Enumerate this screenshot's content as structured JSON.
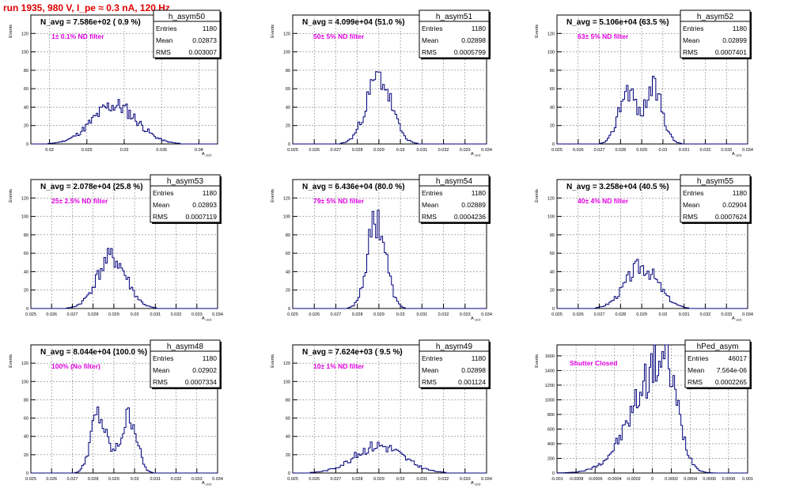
{
  "page_title": "run 1935,   980 V, I_pe ≈ 0.3 nA, 120 Hz",
  "stat_labels": {
    "entries": "Entries",
    "mean": "Mean",
    "rms": "RMS"
  },
  "colors": {
    "histogram": "#00007a",
    "annotation": "#e000e0",
    "title": "#e00000",
    "grid": "#808080"
  },
  "chart_data": [
    {
      "type": "bar",
      "name": "h_asym50",
      "title": "N_avg = 7.586e+02 ( 0.9 %)",
      "annotation": "1± 0.1% ND filter",
      "ylabel": "Events",
      "xlabel": "A",
      "xlim": [
        0.0175,
        0.0425
      ],
      "ylim": [
        0,
        140
      ],
      "xticks": [
        0.02,
        0.025,
        0.03,
        0.035,
        0.04
      ],
      "xtick_labels": [
        "0.02",
        "0.025",
        "0.03",
        "0.035",
        "0.04"
      ],
      "yticks": [
        0,
        20,
        40,
        60,
        80,
        100,
        120
      ],
      "ytick_labels": [
        "0",
        "20",
        "40",
        "60",
        "80",
        "100",
        "120"
      ],
      "stats": {
        "entries": "1180",
        "mean": "0.02873",
        "rms": "0.003007"
      },
      "shape": {
        "kind": "gauss",
        "mean": 0.0287,
        "sigma": 0.003,
        "peak": 42,
        "bins": 120,
        "seed": 11
      }
    },
    {
      "type": "bar",
      "name": "h_asym51",
      "title": "N_avg = 4.099e+04 (51.0 %)",
      "annotation": "50± 5% ND filter",
      "ylabel": "Events",
      "xlabel": "A",
      "xlim": [
        0.025,
        0.034
      ],
      "ylim": [
        0,
        140
      ],
      "xticks": [
        0.025,
        0.026,
        0.027,
        0.028,
        0.029,
        0.03,
        0.031,
        0.032,
        0.033,
        0.034
      ],
      "xtick_labels": [
        "0.025",
        "0.026",
        "0.027",
        "0.028",
        "0.029",
        "0.03",
        "0.031",
        "0.032",
        "0.033",
        "0.034"
      ],
      "yticks": [
        0,
        20,
        40,
        60,
        80,
        100,
        120
      ],
      "ytick_labels": [
        "0",
        "20",
        "40",
        "60",
        "80",
        "100",
        "120"
      ],
      "stats": {
        "entries": "1180",
        "mean": "0.02898",
        "rms": "0.0005799"
      },
      "shape": {
        "kind": "gauss",
        "mean": 0.029,
        "sigma": 0.00058,
        "peak": 72,
        "bins": 110,
        "seed": 23
      }
    },
    {
      "type": "bar",
      "name": "h_asym52",
      "title": "N_avg = 5.106e+04 (63.5 %)",
      "annotation": "63± 5% ND filter",
      "ylabel": "Events",
      "xlabel": "A",
      "xlim": [
        0.025,
        0.034
      ],
      "ylim": [
        0,
        140
      ],
      "xticks": [
        0.025,
        0.026,
        0.027,
        0.028,
        0.029,
        0.03,
        0.031,
        0.032,
        0.033,
        0.034
      ],
      "xtick_labels": [
        "0.025",
        "0.026",
        "0.027",
        "0.028",
        "0.029",
        "0.03",
        "0.031",
        "0.032",
        "0.033",
        "0.034"
      ],
      "yticks": [
        0,
        20,
        40,
        60,
        80,
        100,
        120
      ],
      "ytick_labels": [
        "0",
        "20",
        "40",
        "60",
        "80",
        "100",
        "120"
      ],
      "stats": {
        "entries": "1180",
        "mean": "0.02899",
        "rms": "0.0007401"
      },
      "shape": {
        "kind": "double",
        "m1": 0.0283,
        "m2": 0.0296,
        "sigma": 0.0004,
        "peak": 58,
        "bins": 110,
        "seed": 37
      }
    },
    {
      "type": "bar",
      "name": "h_asym53",
      "title": "N_avg = 2.078e+04 (25.8 %)",
      "annotation": "25± 2.5% ND filter",
      "ylabel": "Events",
      "xlabel": "A",
      "xlim": [
        0.025,
        0.034
      ],
      "ylim": [
        0,
        140
      ],
      "xticks": [
        0.025,
        0.026,
        0.027,
        0.028,
        0.029,
        0.03,
        0.031,
        0.032,
        0.033,
        0.034
      ],
      "xtick_labels": [
        "0.025",
        "0.026",
        "0.027",
        "0.028",
        "0.029",
        "0.03",
        "0.031",
        "0.032",
        "0.033",
        "0.034"
      ],
      "yticks": [
        0,
        20,
        40,
        60,
        80,
        100,
        120
      ],
      "ytick_labels": [
        "0",
        "20",
        "40",
        "60",
        "80",
        "100",
        "120"
      ],
      "stats": {
        "entries": "1180",
        "mean": "0.02893",
        "rms": "0.0007119"
      },
      "shape": {
        "kind": "gauss",
        "mean": 0.0289,
        "sigma": 0.00071,
        "peak": 55,
        "bins": 110,
        "seed": 41
      }
    },
    {
      "type": "bar",
      "name": "h_asym54",
      "title": "N_avg = 6.436e+04 (80.0 %)",
      "annotation": "79± 5% ND filter",
      "ylabel": "Events",
      "xlabel": "A",
      "xlim": [
        0.025,
        0.034
      ],
      "ylim": [
        0,
        140
      ],
      "xticks": [
        0.025,
        0.026,
        0.027,
        0.028,
        0.029,
        0.03,
        0.031,
        0.032,
        0.033,
        0.034
      ],
      "xtick_labels": [
        "0.025",
        "0.026",
        "0.027",
        "0.028",
        "0.029",
        "0.03",
        "0.031",
        "0.032",
        "0.033",
        "0.034"
      ],
      "yticks": [
        0,
        20,
        40,
        60,
        80,
        100,
        120
      ],
      "ytick_labels": [
        "0",
        "20",
        "40",
        "60",
        "80",
        "100",
        "120"
      ],
      "stats": {
        "entries": "1180",
        "mean": "0.02889",
        "rms": "0.0004236"
      },
      "shape": {
        "kind": "gauss",
        "mean": 0.0289,
        "sigma": 0.00042,
        "peak": 98,
        "bins": 110,
        "seed": 53
      }
    },
    {
      "type": "bar",
      "name": "h_asym55",
      "title": "N_avg = 3.258e+04 (40.5 %)",
      "annotation": "40± 4% ND filter",
      "ylabel": "Events",
      "xlabel": "A",
      "xlim": [
        0.025,
        0.034
      ],
      "ylim": [
        0,
        140
      ],
      "xticks": [
        0.025,
        0.026,
        0.027,
        0.028,
        0.029,
        0.03,
        0.031,
        0.032,
        0.033,
        0.034
      ],
      "xtick_labels": [
        "0.025",
        "0.026",
        "0.027",
        "0.028",
        "0.029",
        "0.03",
        "0.031",
        "0.032",
        "0.033",
        "0.034"
      ],
      "yticks": [
        0,
        20,
        40,
        60,
        80,
        100,
        120
      ],
      "ytick_labels": [
        "0",
        "20",
        "40",
        "60",
        "80",
        "100",
        "120"
      ],
      "stats": {
        "entries": "1180",
        "mean": "0.02904",
        "rms": "0.0007624"
      },
      "shape": {
        "kind": "gauss",
        "mean": 0.029,
        "sigma": 0.00076,
        "peak": 46,
        "bins": 110,
        "seed": 67
      }
    },
    {
      "type": "bar",
      "name": "h_asym48",
      "title": "N_avg = 8.044e+04 (100.0 %)",
      "annotation": "100% (No filter)",
      "ylabel": "Events",
      "xlabel": "A",
      "xlim": [
        0.025,
        0.034
      ],
      "ylim": [
        0,
        140
      ],
      "xticks": [
        0.025,
        0.026,
        0.027,
        0.028,
        0.029,
        0.03,
        0.031,
        0.032,
        0.033,
        0.034
      ],
      "xtick_labels": [
        "0.025",
        "0.026",
        "0.027",
        "0.028",
        "0.029",
        "0.03",
        "0.031",
        "0.032",
        "0.033",
        "0.034"
      ],
      "yticks": [
        0,
        20,
        40,
        60,
        80,
        100,
        120
      ],
      "ytick_labels": [
        "0",
        "20",
        "40",
        "60",
        "80",
        "100",
        "120"
      ],
      "stats": {
        "entries": "1180",
        "mean": "0.02902",
        "rms": "0.0007334"
      },
      "shape": {
        "kind": "double",
        "m1": 0.0282,
        "m2": 0.0298,
        "sigma": 0.00034,
        "peak": 66,
        "bins": 110,
        "seed": 79
      }
    },
    {
      "type": "bar",
      "name": "h_asym49",
      "title": "N_avg = 7.624e+03 ( 9.5 %)",
      "annotation": "10± 1% ND filter",
      "ylabel": "Events",
      "xlabel": "A",
      "xlim": [
        0.025,
        0.034
      ],
      "ylim": [
        0,
        140
      ],
      "xticks": [
        0.025,
        0.026,
        0.027,
        0.028,
        0.029,
        0.03,
        0.031,
        0.032,
        0.033,
        0.034
      ],
      "xtick_labels": [
        "0.025",
        "0.026",
        "0.027",
        "0.028",
        "0.029",
        "0.03",
        "0.031",
        "0.032",
        "0.033",
        "0.034"
      ],
      "yticks": [
        0,
        20,
        40,
        60,
        80,
        100,
        120
      ],
      "ytick_labels": [
        "0",
        "20",
        "40",
        "60",
        "80",
        "100",
        "120"
      ],
      "stats": {
        "entries": "1180",
        "mean": "0.02898",
        "rms": "0.001124"
      },
      "shape": {
        "kind": "gauss",
        "mean": 0.029,
        "sigma": 0.00112,
        "peak": 30,
        "bins": 110,
        "seed": 83
      }
    },
    {
      "type": "bar",
      "name": "hPed_asym",
      "title": "",
      "annotation": "Shutter Closed",
      "ylabel": "Events",
      "xlabel": "",
      "xlim": [
        -0.001,
        0.001
      ],
      "ylim": [
        0,
        1750
      ],
      "xticks": [
        -0.001,
        -0.0008,
        -0.0006,
        -0.0004,
        -0.0002,
        0,
        0.0002,
        0.0004,
        0.0006,
        0.0008,
        0.001
      ],
      "xtick_labels": [
        "-0.001",
        "-0.0008",
        "-0.0006",
        "-0.0004",
        "-0.0002",
        "0",
        "0.0002",
        "0.0004",
        "0.0006",
        "0.0008",
        "0.001"
      ],
      "yticks": [
        0,
        200,
        400,
        600,
        800,
        1000,
        1200,
        1400,
        1600
      ],
      "ytick_labels": [
        "0",
        "200",
        "400",
        "600",
        "800",
        "1000",
        "1200",
        "1400",
        "1600"
      ],
      "stats": {
        "entries": "46017",
        "mean": "7.564e-06",
        "rms": "0.0002265"
      },
      "shape": {
        "kind": "skew",
        "mode": 0.00012,
        "sigmaL": 0.0003,
        "sigmaR": 0.00014,
        "peak": 1560,
        "bins": 120,
        "seed": 97
      }
    }
  ]
}
